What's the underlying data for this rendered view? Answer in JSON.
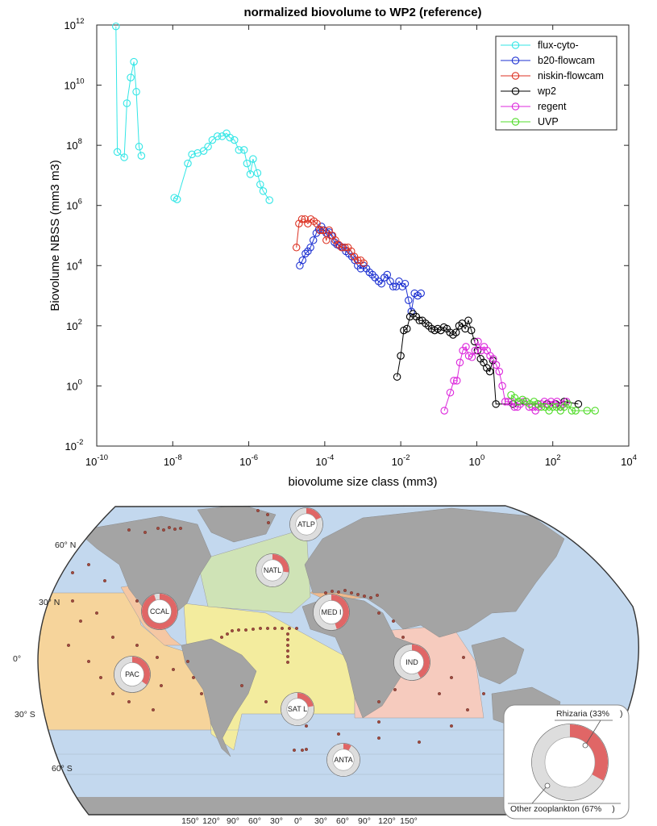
{
  "chart_data": [
    {
      "type": "scatter",
      "title": "normalized biovolume to WP2 (reference)",
      "xlabel": "biovolume size class (mm3)",
      "ylabel": "Biovolume NBSS (mm3 m3)",
      "x_scale": "log",
      "y_scale": "log",
      "xlim": [
        1e-10,
        10000.0
      ],
      "ylim": [
        0.01,
        1000000000000.0
      ],
      "x_tick_exponents": [
        -10,
        -8,
        -6,
        -4,
        -2,
        0,
        2,
        4
      ],
      "y_tick_exponents": [
        -2,
        0,
        2,
        4,
        6,
        8,
        10,
        12
      ],
      "tick_base": "10",
      "legend_position": "top-right",
      "series": [
        {
          "name": "flux-cyto-",
          "color": "#33e6e6",
          "x": [
            3.2e-10,
            3.5e-10,
            5.3e-10,
            6.2e-10,
            7.8e-10,
            9.5e-10,
            1.1e-09,
            1.3e-09,
            1.5e-09
          ],
          "y": [
            900000000000.0,
            60000000.0,
            40000000.0,
            2500000000.0,
            18000000000.0,
            60000000000.0,
            6000000000.0,
            90000000.0,
            45000000.0
          ]
        },
        {
          "name": "flux-cyto-",
          "color": "#33e6e6",
          "x": [
            1.1e-08,
            1.3e-08,
            2.5e-08,
            3.2e-08,
            4.5e-08,
            6.5e-08,
            8.5e-08,
            1.1e-07,
            1.5e-07,
            2e-07,
            2.6e-07,
            3.2e-07,
            4.2e-07,
            5.5e-07,
            7.5e-07,
            9e-07,
            1.1e-06,
            1.3e-06,
            1.7e-06,
            2e-06,
            2.4e-06,
            3.5e-06
          ],
          "y": [
            1800000.0,
            1600000.0,
            25000000.0,
            50000000.0,
            55000000.0,
            65000000.0,
            90000000.0,
            150000000.0,
            200000000.0,
            200000000.0,
            250000000.0,
            180000000.0,
            150000000.0,
            70000000.0,
            70000000.0,
            25000000.0,
            11000000.0,
            35000000.0,
            12000000.0,
            5000000.0,
            3000000.0,
            1500000.0
          ]
        },
        {
          "name": "b20-flowcam",
          "color": "#1e32d2",
          "x": [
            2.2e-05,
            2.6e-05,
            3.1e-05,
            3.6e-05,
            4.2e-05,
            5e-05,
            6e-05,
            7e-05,
            8.2e-05,
            9.6e-05,
            0.00011,
            0.00013,
            0.00015,
            0.00018,
            0.00021,
            0.00025,
            0.0003,
            0.00036,
            0.00043,
            0.00052,
            0.00062,
            0.00074,
            0.00088,
            0.00105,
            0.00125,
            0.0015,
            0.0018,
            0.0021,
            0.0026,
            0.0031,
            0.0037,
            0.0044,
            0.0053,
            0.0063,
            0.0075,
            0.009,
            0.011,
            0.013,
            0.016,
            0.019,
            0.023,
            0.028,
            0.034
          ],
          "y": [
            10000.0,
            15000.0,
            25000.0,
            30000.0,
            40000.0,
            70000.0,
            120000.0,
            160000.0,
            200000.0,
            150000.0,
            120000.0,
            130000.0,
            100000.0,
            60000.0,
            50000.0,
            45000.0,
            40000.0,
            30000.0,
            25000.0,
            20000.0,
            15000.0,
            10000.0,
            8000.0,
            10000.0,
            8000.0,
            6000.0,
            5000.0,
            4000.0,
            3000.0,
            2500.0,
            4000.0,
            5000.0,
            3000.0,
            2000.0,
            2000.0,
            3000.0,
            2000.0,
            2500.0,
            700.0,
            300.0,
            1200.0,
            1000.0,
            1200.0
          ]
        },
        {
          "name": "niskin-flowcam",
          "color": "#dc3223",
          "x": [
            1.8e-05,
            2.1e-05,
            2.5e-05,
            3e-05,
            3.6e-05,
            4.3e-05,
            5.2e-05,
            6.2e-05,
            7.5e-05,
            9e-05,
            0.00011,
            0.00013,
            0.00016,
            0.00019,
            0.00023,
            0.00028,
            0.00034,
            0.00041,
            0.0005,
            0.0006,
            0.00073,
            0.00088,
            0.00106
          ],
          "y": [
            40000.0,
            250000.0,
            350000.0,
            350000.0,
            250000.0,
            350000.0,
            300000.0,
            250000.0,
            150000.0,
            150000.0,
            70000.0,
            150000.0,
            100000.0,
            70000.0,
            50000.0,
            40000.0,
            40000.0,
            40000.0,
            30000.0,
            20000.0,
            15000.0,
            15000.0,
            12000.0
          ]
        },
        {
          "name": "wp2",
          "color": "#000000",
          "x": [
            0.008,
            0.01,
            0.012,
            0.0145,
            0.0175,
            0.021,
            0.0255,
            0.031,
            0.037,
            0.045,
            0.054,
            0.065,
            0.078,
            0.094,
            0.113,
            0.136,
            0.164,
            0.197,
            0.237,
            0.285,
            0.343,
            0.413,
            0.497,
            0.6,
            0.72,
            0.87,
            1.05,
            1.26,
            1.52,
            1.83,
            2.2,
            2.65,
            3.2,
            9,
            40,
            70,
            120,
            200,
            470
          ],
          "y": [
            2,
            10,
            70,
            80,
            200,
            250,
            200,
            150,
            150,
            120,
            100,
            80,
            70,
            80,
            70,
            90,
            80,
            60,
            50,
            60,
            100,
            120,
            80,
            150,
            70,
            30,
            15,
            8,
            6,
            4,
            3,
            7,
            0.25,
            0.25,
            0.25,
            0.25,
            0.25,
            0.3,
            0.25
          ]
        },
        {
          "name": "regent",
          "color": "#dc28dc",
          "x": [
            0.14,
            0.2,
            0.25,
            0.3,
            0.36,
            0.43,
            0.52,
            0.62,
            0.75,
            0.9,
            1.08,
            1.3,
            1.56,
            1.87,
            2.25,
            2.7,
            3.25,
            3.9,
            4.7,
            5.6,
            6.8,
            8.1,
            9.8,
            11.7,
            14,
            17,
            20,
            24,
            29,
            35,
            42,
            50,
            60,
            75,
            90,
            110,
            130,
            160,
            190,
            230
          ],
          "y": [
            0.15,
            0.6,
            1.5,
            1.5,
            6,
            15,
            20,
            10,
            9,
            15,
            30,
            15,
            20,
            15,
            10,
            8,
            5,
            3,
            1,
            0.3,
            0.3,
            0.3,
            0.2,
            0.2,
            0.25,
            0.3,
            0.3,
            0.2,
            0.2,
            0.15,
            0.2,
            0.25,
            0.3,
            0.25,
            0.3,
            0.25,
            0.3,
            0.2,
            0.25,
            0.3
          ]
        },
        {
          "name": "UVP",
          "color": "#50dc28",
          "x": [
            8,
            10,
            12.5,
            16,
            20,
            25,
            32,
            40,
            50,
            63,
            80,
            100,
            126,
            160,
            200,
            252,
            317,
            400,
            800,
            1300
          ],
          "y": [
            0.5,
            0.4,
            0.3,
            0.35,
            0.3,
            0.25,
            0.3,
            0.25,
            0.2,
            0.2,
            0.15,
            0.2,
            0.2,
            0.15,
            0.2,
            0.25,
            0.15,
            0.15,
            0.15,
            0.15
          ]
        }
      ]
    },
    {
      "type": "pie",
      "title": "",
      "legend": [
        {
          "label": "Rhizaria (33%",
          "suffix": ")",
          "value": 33,
          "color": "#e06666"
        },
        {
          "label": "Other zooplankton (67%",
          "suffix": ")",
          "value": 67,
          "color": "#dddddd"
        }
      ],
      "regions": [
        {
          "code": "ATLP",
          "rhizaria": 18
        },
        {
          "code": "NATL",
          "rhizaria": 27
        },
        {
          "code": "CCAL",
          "rhizaria": 95
        },
        {
          "code": "MED I",
          "rhizaria": 45
        },
        {
          "code": "PAC",
          "rhizaria": 35
        },
        {
          "code": "IND",
          "rhizaria": 42
        },
        {
          "code": "SAT L",
          "rhizaria": 22
        },
        {
          "code": "ANTA",
          "rhizaria": 8
        }
      ],
      "latitude_labels": [
        "60° N",
        "30° N",
        "0°",
        "30° S",
        "60° S"
      ],
      "longitude_labels": [
        "150°",
        "120°",
        "90°",
        "60°",
        "30°",
        "0°",
        "30°",
        "60°",
        "90°",
        "120°",
        "150°"
      ],
      "colors": {
        "ocean": "#c3d8ee",
        "land": "#a4a4a4",
        "pacific": "#f6d49b",
        "atlantic_south": "#f3ec9e",
        "atlantic_north": "#cfe3b6",
        "indian": "#f6cbbe",
        "med": "#f0b98c",
        "ccal": "#f5c7a3",
        "rhizaria": "#e06666",
        "other": "#dddddd"
      }
    }
  ]
}
